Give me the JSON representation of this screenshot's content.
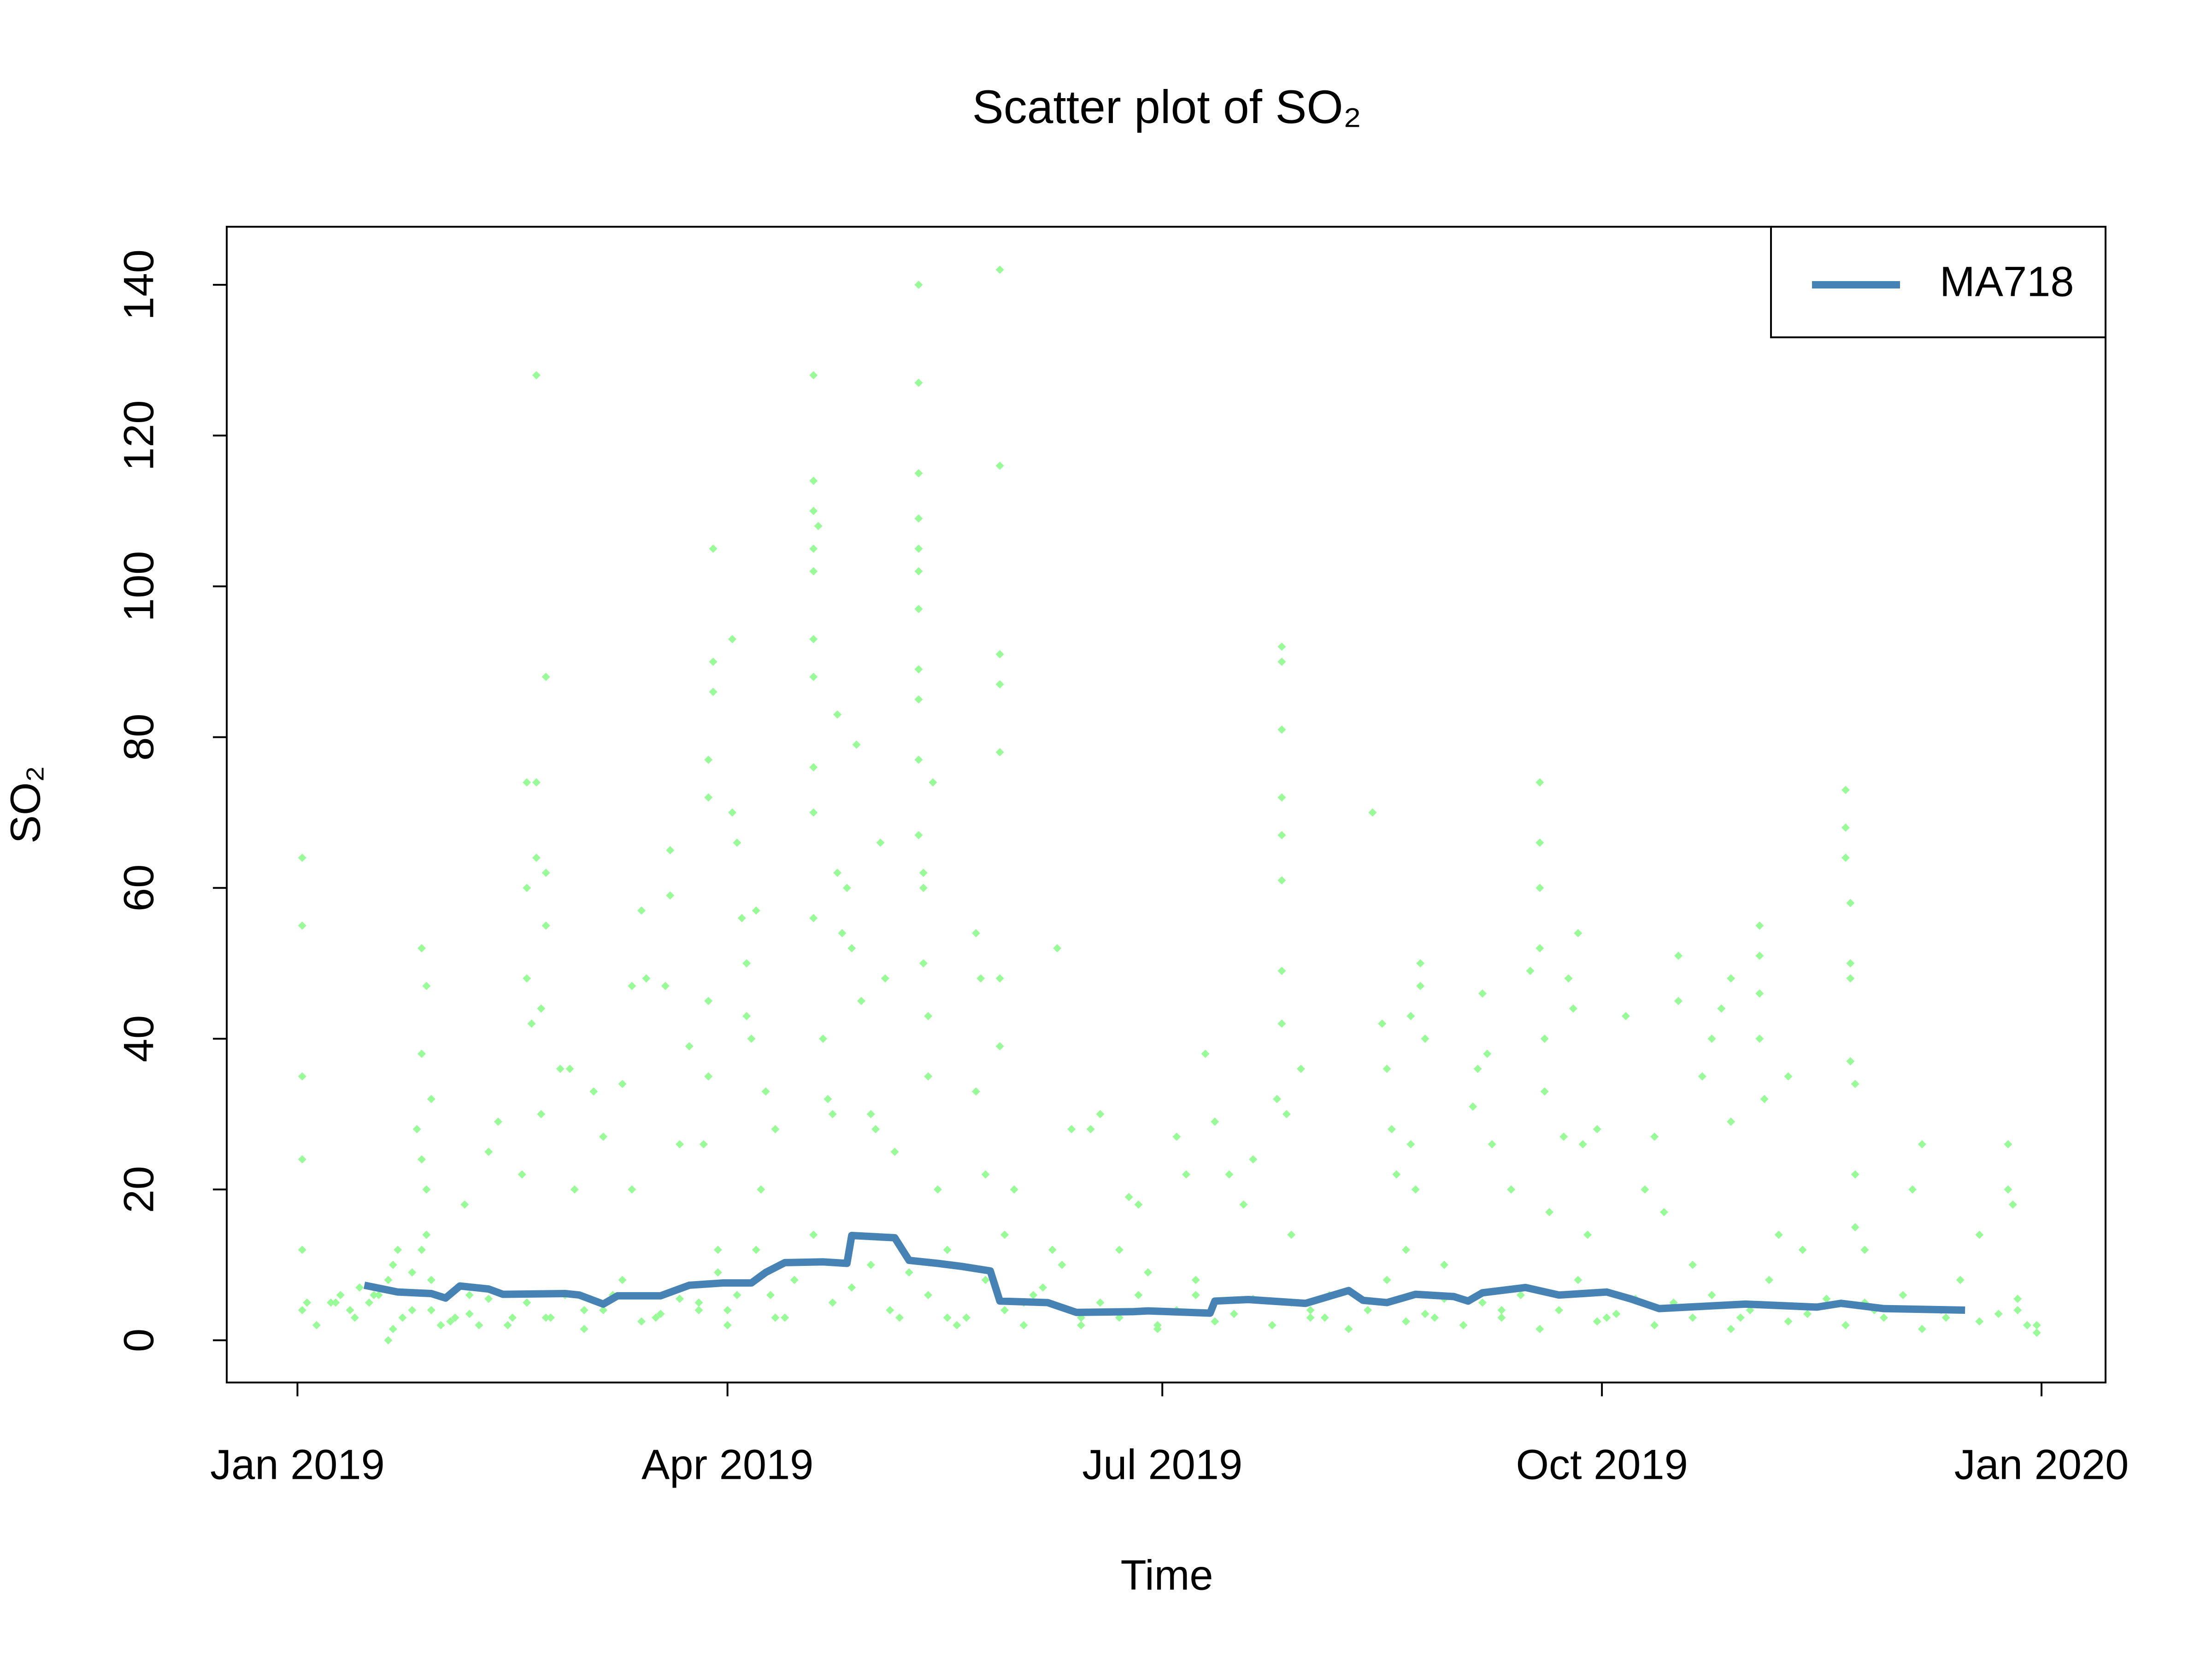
{
  "chart_data": {
    "type": "scatter",
    "title": "Scatter plot of SO₂",
    "xlabel": "Time",
    "ylabel": "SO₂",
    "xlim": [
      -14.8,
      378.4
    ],
    "ylim": [
      -5.6,
      147.7
    ],
    "xticks": [
      {
        "value": 0,
        "label": "Jan 2019"
      },
      {
        "value": 90,
        "label": "Apr 2019"
      },
      {
        "value": 181,
        "label": "Jul 2019"
      },
      {
        "value": 273,
        "label": "Oct 2019"
      },
      {
        "value": 365,
        "label": "Jan 2020"
      }
    ],
    "yticks": [
      0,
      20,
      40,
      60,
      80,
      100,
      120,
      140
    ],
    "legend": "top-right",
    "series": [
      {
        "type": "scatter",
        "color": "#98fb98",
        "x": [
          1,
          1,
          1,
          1,
          1,
          1,
          2,
          7,
          9,
          11,
          13,
          15,
          17,
          19,
          20,
          21,
          22,
          19,
          24,
          26,
          27,
          26,
          25,
          27,
          28,
          26,
          27,
          26,
          28,
          30,
          33,
          35,
          36,
          38,
          40,
          42,
          45,
          47,
          48,
          48,
          48,
          49,
          50,
          50,
          50,
          51,
          52,
          52,
          51,
          53,
          52,
          55,
          57,
          58,
          60,
          62,
          64,
          66,
          68,
          70,
          70,
          72,
          73,
          75,
          77,
          78,
          78,
          80,
          82,
          84,
          86,
          86,
          87,
          87,
          87,
          86,
          86,
          85,
          88,
          90,
          90,
          91,
          91,
          92,
          93,
          94,
          94,
          95,
          96,
          97,
          98,
          99,
          100,
          102,
          108,
          108,
          108,
          108,
          108,
          108,
          108,
          108,
          108,
          108,
          109,
          110,
          111,
          112,
          113,
          113,
          114,
          115,
          116,
          117,
          118,
          120,
          121,
          122,
          123,
          125,
          126,
          130,
          130,
          130,
          130,
          130,
          130,
          130,
          130,
          130,
          130,
          130,
          131,
          131,
          131,
          132,
          132,
          133,
          134,
          136,
          138,
          142,
          142,
          143,
          144,
          147,
          147,
          147,
          147,
          147,
          147,
          147,
          148,
          150,
          152,
          154,
          158,
          159,
          162,
          164,
          166,
          168,
          172,
          174,
          176,
          178,
          180,
          184,
          186,
          188,
          190,
          192,
          195,
          198,
          200,
          206,
          206,
          206,
          206,
          206,
          206,
          206,
          206,
          205,
          207,
          208,
          210,
          212,
          215,
          225,
          227,
          228,
          229,
          230,
          232,
          233,
          233,
          234,
          235,
          235,
          236,
          238,
          240,
          246,
          247,
          248,
          249,
          250,
          252,
          254,
          258,
          260,
          260,
          260,
          260,
          261,
          261,
          262,
          265,
          266,
          267,
          268,
          269,
          270,
          272,
          274,
          278,
          282,
          284,
          286,
          289,
          289,
          292,
          294,
          296,
          298,
          300,
          300,
          302,
          306,
          306,
          306,
          306,
          307,
          310,
          312,
          315,
          324,
          324,
          324,
          325,
          325,
          325,
          325,
          326,
          326,
          326,
          328,
          330,
          338,
          340,
          345,
          352,
          358,
          358,
          359,
          360,
          362,
          364,
          4,
          8,
          12,
          16,
          20,
          24,
          28,
          32,
          36,
          40,
          44,
          48,
          52,
          56,
          60,
          64,
          68,
          72,
          76,
          80,
          84,
          88,
          92,
          96,
          100,
          104,
          108,
          112,
          116,
          120,
          124,
          128,
          132,
          136,
          140,
          144,
          148,
          152,
          156,
          160,
          164,
          168,
          172,
          176,
          180,
          184,
          188,
          192,
          196,
          200,
          204,
          208,
          212,
          216,
          220,
          224,
          228,
          232,
          236,
          240,
          244,
          248,
          252,
          256,
          260,
          264,
          268,
          272,
          276,
          280,
          284,
          288,
          292,
          296,
          300,
          304,
          308,
          312,
          316,
          320,
          324,
          328,
          332,
          336,
          340,
          344,
          348,
          352,
          356,
          360,
          364
        ],
        "values": [
          4,
          64,
          55,
          35,
          24,
          12,
          5,
          5,
          6,
          4,
          7,
          5,
          6,
          8,
          10,
          12,
          3,
          0,
          9,
          12,
          14,
          24,
          28,
          20,
          32,
          38,
          47,
          52,
          4,
          2,
          3,
          18,
          6,
          2,
          25,
          29,
          3,
          22,
          60,
          74,
          48,
          42,
          128,
          74,
          64,
          44,
          55,
          62,
          30,
          3,
          88,
          36,
          36,
          20,
          4,
          33,
          27,
          6,
          34,
          47,
          20,
          57,
          48,
          3,
          47,
          59,
          65,
          26,
          39,
          5,
          77,
          72,
          90,
          105,
          86,
          45,
          35,
          26,
          12,
          4,
          2,
          93,
          70,
          66,
          56,
          50,
          43,
          40,
          57,
          20,
          33,
          6,
          28,
          3,
          128,
          114,
          110,
          105,
          102,
          93,
          88,
          76,
          70,
          56,
          108,
          40,
          32,
          30,
          83,
          62,
          54,
          60,
          52,
          79,
          45,
          30,
          28,
          66,
          48,
          25,
          3,
          140,
          127,
          115,
          109,
          105,
          102,
          97,
          89,
          85,
          77,
          67,
          62,
          60,
          50,
          43,
          35,
          74,
          20,
          3,
          2,
          54,
          33,
          48,
          22,
          142,
          116,
          91,
          87,
          78,
          48,
          39,
          4,
          20,
          2,
          6,
          12,
          52,
          28,
          3,
          28,
          30,
          12,
          19,
          18,
          9,
          2,
          27,
          22,
          6,
          38,
          29,
          22,
          18,
          24,
          92,
          90,
          81,
          72,
          67,
          61,
          49,
          42,
          32,
          30,
          14,
          36,
          4,
          3,
          70,
          42,
          36,
          28,
          22,
          12,
          26,
          43,
          20,
          50,
          47,
          40,
          3,
          10,
          31,
          36,
          46,
          38,
          26,
          4,
          20,
          49,
          74,
          66,
          60,
          52,
          40,
          33,
          17,
          27,
          48,
          44,
          54,
          26,
          14,
          28,
          3,
          43,
          20,
          27,
          17,
          51,
          45,
          10,
          35,
          40,
          44,
          48,
          29,
          3,
          55,
          51,
          46,
          40,
          32,
          14,
          35,
          12,
          73,
          68,
          64,
          58,
          50,
          48,
          37,
          34,
          22,
          15,
          12,
          4,
          20,
          26,
          3,
          14,
          26,
          20,
          18,
          4,
          2,
          1,
          2,
          5,
          3,
          6,
          1.5,
          4,
          8,
          2.5,
          3.5,
          5.5,
          2,
          5,
          3,
          6,
          1.5,
          4,
          8,
          2.5,
          3.5,
          5.5,
          4,
          9,
          6,
          12,
          3,
          8,
          14,
          5,
          7,
          10,
          4,
          9,
          6,
          12,
          3,
          8,
          14,
          5,
          7,
          10,
          2,
          5,
          3,
          6,
          1.5,
          4,
          8,
          2.5,
          3.5,
          5.5,
          2,
          5,
          3,
          6,
          1.5,
          4,
          8,
          2.5,
          3.5,
          5.5,
          2,
          5,
          3,
          6,
          1.5,
          4,
          8,
          2.5,
          3.5,
          5.5,
          2,
          5,
          3,
          6,
          1.5,
          4,
          8,
          2.5,
          3.5,
          5.5,
          2,
          5,
          3,
          6,
          1.5,
          4,
          8,
          2.5,
          3.5,
          5.5,
          2
        ]
      },
      {
        "type": "line",
        "name": "MA718",
        "color": "#4682b4",
        "x": [
          14,
          21,
          28,
          31,
          34,
          40,
          43,
          56,
          59,
          64,
          67,
          76,
          82,
          89,
          95,
          98,
          102,
          110,
          115,
          116,
          125,
          128,
          134,
          139,
          145,
          147,
          157,
          163,
          175,
          178,
          191,
          192,
          199,
          211,
          220,
          223,
          228,
          234,
          242,
          245,
          248,
          257,
          264,
          274,
          279,
          285,
          303,
          318,
          323,
          332,
          349
        ],
        "values": [
          7.3,
          6.4,
          6.2,
          5.6,
          7.2,
          6.8,
          6.1,
          6.2,
          6.0,
          4.8,
          5.9,
          5.9,
          7.3,
          7.6,
          7.6,
          9.0,
          10.3,
          10.4,
          10.2,
          13.9,
          13.6,
          10.6,
          10.2,
          9.8,
          9.2,
          5.2,
          5.0,
          3.7,
          3.8,
          3.9,
          3.6,
          5.2,
          5.4,
          4.9,
          6.6,
          5.3,
          5.0,
          6.1,
          5.8,
          5.2,
          6.3,
          7.0,
          6.0,
          6.4,
          5.5,
          4.2,
          4.8,
          4.4,
          4.9,
          4.2,
          4.0
        ]
      }
    ]
  }
}
